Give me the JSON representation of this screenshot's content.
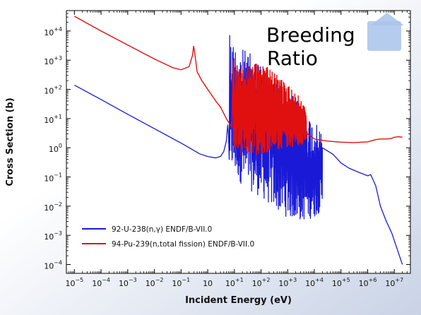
{
  "colors": {
    "background_top": "#ffffff",
    "background_bottom": "#c9d3e6",
    "plot_background": "#ffffff",
    "u238_series": "#1a1ad6",
    "pu239_series": "#e11010",
    "logo": "#a9c3ec"
  },
  "chart_data": {
    "type": "line",
    "title": "",
    "annotation": [
      "Breeding",
      "Ratio"
    ],
    "xlabel": "Incident Energy (eV)",
    "ylabel": "Cross Section (b)",
    "xscale": "log",
    "yscale": "log",
    "xlim": [
      5e-06,
      40000000.0
    ],
    "ylim": [
      5e-05,
      50000.0
    ],
    "grid": false,
    "legend_position": "lower-left",
    "x_ticks": [
      {
        "base": "10",
        "exp": "−5",
        "value": 1e-05
      },
      {
        "base": "10",
        "exp": "−4",
        "value": 0.0001
      },
      {
        "base": "10",
        "exp": "−3",
        "value": 0.001
      },
      {
        "base": "10",
        "exp": "−2",
        "value": 0.01
      },
      {
        "base": "10",
        "exp": "−1",
        "value": 0.1
      },
      {
        "base": "10",
        "exp": "",
        "value": 1,
        "plain": "10⁰"
      },
      {
        "base": "10",
        "exp": "+1",
        "value": 10.0
      },
      {
        "base": "10",
        "exp": "+2",
        "value": 100.0
      },
      {
        "base": "10",
        "exp": "+3",
        "value": 1000.0
      },
      {
        "base": "10",
        "exp": "+4",
        "value": 10000.0
      },
      {
        "base": "10",
        "exp": "+5",
        "value": 100000.0
      },
      {
        "base": "10",
        "exp": "+6",
        "value": 1000000.0
      },
      {
        "base": "10",
        "exp": "+7",
        "value": 10000000.0
      }
    ],
    "y_ticks": [
      {
        "base": "10",
        "exp": "−4",
        "value": 0.0001
      },
      {
        "base": "10",
        "exp": "−3",
        "value": 0.001
      },
      {
        "base": "10",
        "exp": "−2",
        "value": 0.01
      },
      {
        "base": "10",
        "exp": "−1",
        "value": 0.1
      },
      {
        "base": "10",
        "exp": "0",
        "value": 1
      },
      {
        "base": "10",
        "exp": "+1",
        "value": 10.0
      },
      {
        "base": "10",
        "exp": "+2",
        "value": 100.0
      },
      {
        "base": "10",
        "exp": "+3",
        "value": 1000.0
      },
      {
        "base": "10",
        "exp": "+4",
        "value": 10000.0
      }
    ],
    "series": [
      {
        "name": "92-U-238(n,γ) ENDF/B-VII.0",
        "color_key": "u238_series",
        "smooth": [
          [
            1e-05,
            140
          ],
          [
            0.0001,
            45
          ],
          [
            0.001,
            14
          ],
          [
            0.01,
            4.5
          ],
          [
            0.1,
            1.45
          ],
          [
            0.5,
            0.62
          ],
          [
            1.0,
            0.5
          ],
          [
            2.0,
            0.45
          ],
          [
            3.0,
            0.5
          ],
          [
            4.0,
            0.75
          ],
          [
            5.0,
            1.7
          ],
          [
            5.6,
            6
          ],
          [
            6.0,
            3
          ],
          [
            6.4,
            0.4
          ],
          [
            6.67,
            7000
          ]
        ],
        "resonance_region": [
          6.67,
          20000.0
        ],
        "resonance_envelope_top": [
          [
            6.67,
            7000
          ],
          [
            10,
            4000
          ],
          [
            20,
            2500
          ],
          [
            50,
            1500
          ],
          [
            100,
            900
          ],
          [
            300,
            400
          ],
          [
            1000,
            100
          ],
          [
            3000,
            30
          ],
          [
            10000.0,
            8
          ],
          [
            20000.0,
            3
          ]
        ],
        "resonance_envelope_bottom": [
          [
            6.67,
            0.2
          ],
          [
            20,
            0.05
          ],
          [
            100,
            0.02
          ],
          [
            300,
            0.008
          ],
          [
            1000,
            0.004
          ],
          [
            3000,
            0.003
          ],
          [
            10000.0,
            0.004
          ],
          [
            20000.0,
            0.008
          ]
        ],
        "tail": [
          [
            20000.0,
            1.0
          ],
          [
            50000.0,
            0.6
          ],
          [
            100000.0,
            0.3
          ],
          [
            200000.0,
            0.2
          ],
          [
            500000.0,
            0.14
          ],
          [
            1000000.0,
            0.11
          ],
          [
            1300000.0,
            0.12
          ],
          [
            2000000.0,
            0.05
          ],
          [
            3000000.0,
            0.01
          ],
          [
            5000000.0,
            0.003
          ],
          [
            8000000.0,
            0.0012
          ],
          [
            12000000.0,
            0.0004
          ],
          [
            20000000.0,
            0.0001
          ]
        ]
      },
      {
        "name": "94-Pu-239(n,total fission) ENDF/B-VII.0",
        "color_key": "pu239_series",
        "smooth": [
          [
            1e-05,
            32000.0
          ],
          [
            0.0001,
            10000.0
          ],
          [
            0.001,
            3300
          ],
          [
            0.01,
            1100
          ],
          [
            0.05,
            550
          ],
          [
            0.1,
            470
          ],
          [
            0.2,
            600
          ],
          [
            0.27,
            1500
          ],
          [
            0.296,
            3000
          ],
          [
            0.32,
            2000
          ],
          [
            0.4,
            400
          ],
          [
            0.6,
            200
          ],
          [
            1.0,
            100
          ],
          [
            2.0,
            40
          ],
          [
            3.0,
            25
          ],
          [
            5.0,
            10
          ],
          [
            7.0,
            6
          ],
          [
            8.0,
            5
          ],
          [
            9.0,
            1000
          ]
        ],
        "resonance_region": [
          9.0,
          5000.0
        ],
        "resonance_envelope_top": [
          [
            9,
            1000
          ],
          [
            15,
            600
          ],
          [
            30,
            700
          ],
          [
            100,
            800
          ],
          [
            300,
            400
          ],
          [
            1000,
            150
          ],
          [
            3000,
            50
          ],
          [
            5000,
            20
          ]
        ],
        "resonance_envelope_bottom": [
          [
            9,
            0.6
          ],
          [
            30,
            0.5
          ],
          [
            100,
            0.6
          ],
          [
            300,
            0.8
          ],
          [
            1000,
            1.0
          ],
          [
            3000,
            1.2
          ],
          [
            5000,
            1.5
          ]
        ],
        "tail": [
          [
            5000.0,
            3.2
          ],
          [
            10000.0,
            2.0
          ],
          [
            30000.0,
            1.7
          ],
          [
            100000.0,
            1.55
          ],
          [
            300000.0,
            1.5
          ],
          [
            1000000.0,
            1.6
          ],
          [
            2000000.0,
            1.9
          ],
          [
            3000000.0,
            2.0
          ],
          [
            5000000.0,
            2.0
          ],
          [
            8000000.0,
            2.1
          ],
          [
            10000000.0,
            2.3
          ],
          [
            15000000.0,
            2.4
          ],
          [
            20000000.0,
            2.3
          ]
        ]
      }
    ]
  }
}
